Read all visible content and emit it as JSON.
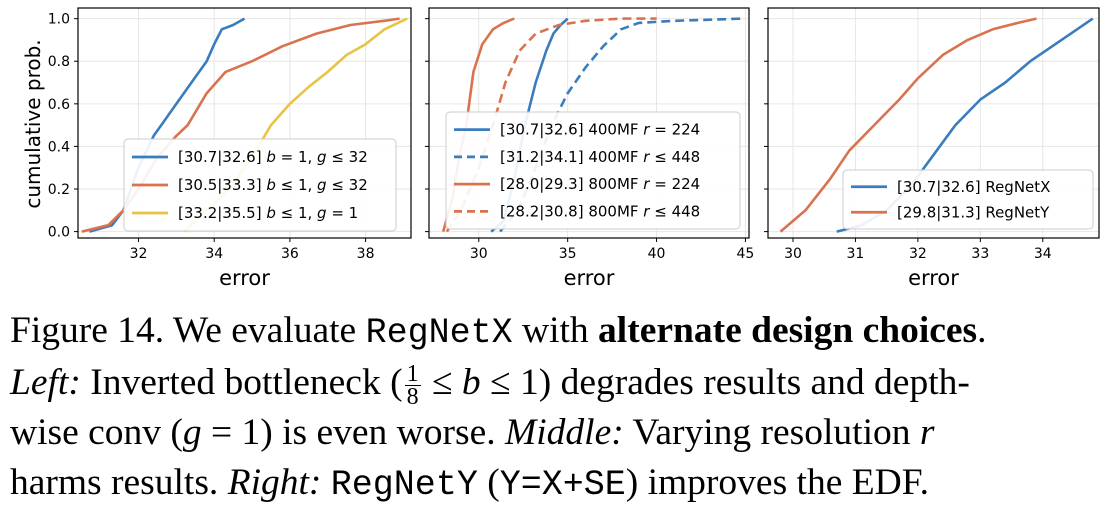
{
  "ylabel": "cumulative prob.",
  "colors": {
    "blue": "#3a7dbe",
    "orange": "#d9734f",
    "yellow": "#e8c445",
    "grid": "#e6e6e6",
    "axis": "#000000"
  },
  "chart_data": [
    {
      "type": "line",
      "xlabel": "error",
      "ylabel": "cumulative prob.",
      "xlim": [
        30.4,
        39.2
      ],
      "ylim": [
        -0.03,
        1.05
      ],
      "x_ticks": [
        "32",
        "34",
        "36",
        "38"
      ],
      "x_tick_values": [
        32,
        34,
        36,
        38
      ],
      "y_ticks": [
        "0.0",
        "0.2",
        "0.4",
        "0.6",
        "0.8",
        "1.0"
      ],
      "y_tick_values": [
        0.0,
        0.2,
        0.4,
        0.6,
        0.8,
        1.0
      ],
      "grid": true,
      "legend_position": "lower-right",
      "series": [
        {
          "name": "[30.7|32.6] b = 1, g ≤ 32",
          "label_parts": [
            "[30.7|32.6] ",
            "b",
            " = 1, ",
            "g",
            " ≤ 32"
          ],
          "color": "#3a7dbe",
          "dash": false,
          "x": [
            30.7,
            31.3,
            31.6,
            32.0,
            32.4,
            32.6,
            33.0,
            33.4,
            33.8,
            34.0,
            34.2,
            34.5,
            34.8
          ],
          "y": [
            0.0,
            0.03,
            0.1,
            0.3,
            0.45,
            0.5,
            0.6,
            0.7,
            0.8,
            0.88,
            0.95,
            0.97,
            1.0
          ]
        },
        {
          "name": "[30.5|33.3] b ≤ 1, g ≤ 32",
          "label_parts": [
            "[30.5|33.3] ",
            "b",
            " ≤ 1, ",
            "g",
            " ≤ 32"
          ],
          "color": "#d9734f",
          "dash": false,
          "x": [
            30.5,
            31.2,
            31.6,
            32.0,
            32.5,
            33.0,
            33.3,
            33.8,
            34.3,
            35.0,
            35.8,
            36.7,
            37.6,
            38.5,
            38.9
          ],
          "y": [
            0.0,
            0.03,
            0.1,
            0.2,
            0.35,
            0.45,
            0.5,
            0.65,
            0.75,
            0.8,
            0.87,
            0.93,
            0.97,
            0.99,
            1.0
          ]
        },
        {
          "name": "[33.2|35.5] b ≤ 1, g = 1",
          "label_parts": [
            "[33.2|35.5] ",
            "b",
            " ≤ 1, ",
            "g",
            " = 1"
          ],
          "color": "#e8c445",
          "dash": false,
          "x": [
            33.2,
            33.8,
            34.4,
            35.0,
            35.5,
            36.0,
            36.5,
            37.0,
            37.5,
            38.0,
            38.5,
            39.1
          ],
          "y": [
            0.0,
            0.1,
            0.2,
            0.35,
            0.5,
            0.6,
            0.68,
            0.75,
            0.83,
            0.88,
            0.95,
            1.0
          ]
        }
      ]
    },
    {
      "type": "line",
      "xlabel": "error",
      "xlim": [
        27.2,
        45.2
      ],
      "ylim": [
        -0.03,
        1.05
      ],
      "x_ticks": [
        "30",
        "35",
        "40",
        "45"
      ],
      "x_tick_values": [
        30,
        35,
        40,
        45
      ],
      "y_tick_values": [
        0.0,
        0.2,
        0.4,
        0.6,
        0.8,
        1.0
      ],
      "grid": true,
      "legend_position": "lower-right",
      "series": [
        {
          "name": "[30.7|32.6] 400MF r = 224",
          "label_parts": [
            "[30.7|32.6] 400MF ",
            "r",
            " = 224"
          ],
          "color": "#3a7dbe",
          "dash": false,
          "x": [
            30.7,
            31.4,
            32.0,
            32.6,
            33.2,
            33.8,
            34.2,
            34.6,
            35.0
          ],
          "y": [
            0.0,
            0.05,
            0.25,
            0.5,
            0.7,
            0.85,
            0.93,
            0.97,
            1.0
          ]
        },
        {
          "name": "[31.2|34.1] 400MF r ≤ 448",
          "label_parts": [
            "[31.2|34.1] 400MF ",
            "r",
            " ≤ 448"
          ],
          "color": "#3a7dbe",
          "dash": true,
          "x": [
            31.2,
            32.2,
            33.2,
            34.1,
            35.0,
            36.0,
            37.0,
            38.0,
            39.0,
            41.0,
            43.0,
            44.8
          ],
          "y": [
            0.0,
            0.1,
            0.3,
            0.5,
            0.65,
            0.77,
            0.87,
            0.95,
            0.98,
            0.99,
            0.995,
            1.0
          ]
        },
        {
          "name": "[28.0|29.3] 800MF r = 224",
          "label_parts": [
            "[28.0|29.3] 800MF ",
            "r",
            " = 224"
          ],
          "color": "#d9734f",
          "dash": false,
          "x": [
            28.0,
            28.5,
            28.9,
            29.3,
            29.7,
            30.2,
            30.8,
            31.4,
            32.0
          ],
          "y": [
            0.0,
            0.15,
            0.35,
            0.5,
            0.75,
            0.88,
            0.95,
            0.98,
            1.0
          ]
        },
        {
          "name": "[28.2|30.8] 800MF r ≤ 448",
          "label_parts": [
            "[28.2|30.8] 800MF ",
            "r",
            " ≤ 448"
          ],
          "color": "#d9734f",
          "dash": true,
          "x": [
            28.2,
            29.0,
            30.0,
            30.8,
            31.5,
            32.3,
            33.2,
            34.5,
            36.0,
            38.0,
            40.0
          ],
          "y": [
            0.0,
            0.1,
            0.3,
            0.5,
            0.7,
            0.85,
            0.93,
            0.97,
            0.99,
            1.0,
            1.0
          ]
        }
      ]
    },
    {
      "type": "line",
      "xlabel": "error",
      "xlim": [
        29.6,
        34.9
      ],
      "ylim": [
        -0.03,
        1.05
      ],
      "x_ticks": [
        "30",
        "31",
        "32",
        "33",
        "34"
      ],
      "x_tick_values": [
        30,
        31,
        32,
        33,
        34
      ],
      "y_tick_values": [
        0.0,
        0.2,
        0.4,
        0.6,
        0.8,
        1.0
      ],
      "grid": true,
      "legend_position": "lower-right",
      "series": [
        {
          "name": "[30.7|32.6] RegNetX",
          "label_parts": [
            "[30.7|32.6] RegNetX"
          ],
          "color": "#3a7dbe",
          "dash": false,
          "x": [
            30.7,
            31.1,
            31.5,
            31.9,
            32.3,
            32.6,
            33.0,
            33.4,
            33.8,
            34.2,
            34.5,
            34.8
          ],
          "y": [
            0.0,
            0.03,
            0.1,
            0.22,
            0.38,
            0.5,
            0.62,
            0.7,
            0.8,
            0.88,
            0.94,
            1.0
          ]
        },
        {
          "name": "[29.8|31.3] RegNetY",
          "label_parts": [
            "[29.8|31.3] RegNetY"
          ],
          "color": "#d9734f",
          "dash": false,
          "x": [
            29.8,
            30.2,
            30.6,
            30.9,
            31.3,
            31.7,
            32.0,
            32.4,
            32.8,
            33.2,
            33.6,
            33.9
          ],
          "y": [
            0.0,
            0.1,
            0.25,
            0.38,
            0.5,
            0.62,
            0.72,
            0.83,
            0.9,
            0.95,
            0.98,
            1.0
          ]
        }
      ]
    }
  ],
  "caption": {
    "label": "Figure 14.",
    "l1_a": " We evaluate ",
    "l1_mono": "RegNetX",
    "l1_b": " with ",
    "l1_bold": "alternate design choices",
    "l1_end": ".",
    "l2_left": "Left:",
    "l2_a": " Inverted bottleneck (",
    "frac_num": "1",
    "frac_den": "8",
    "l2_b": " ≤ ",
    "l2_var1": "b",
    "l2_c": " ≤ 1) degrades results and depth-",
    "l3_a": "wise conv (",
    "l3_var": "g",
    "l3_b": " = 1) is even worse. ",
    "l3_middle": "Middle:",
    "l3_c": " Varying resolution ",
    "l3_var2": "r",
    "l4_a": "harms results. ",
    "l4_right": "Right:",
    "l4_sp": " ",
    "l4_mono": "RegNetY",
    "l4_b": " (",
    "l4_mono2": "Y=X+SE",
    "l4_c": ") improves the EDF."
  }
}
